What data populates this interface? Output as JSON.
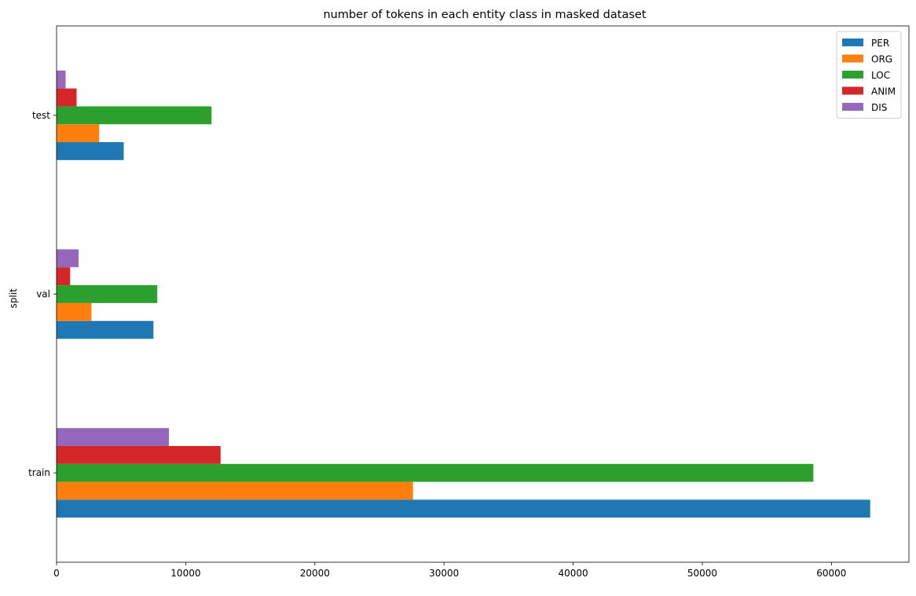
{
  "chart_data": {
    "type": "bar",
    "orientation": "horizontal",
    "title": "number of tokens in each entity class in masked dataset",
    "xlabel": "",
    "ylabel": "split",
    "categories": [
      "train",
      "val",
      "test"
    ],
    "xlim": [
      0,
      66000
    ],
    "xticks": [
      0,
      10000,
      20000,
      30000,
      40000,
      50000,
      60000
    ],
    "grid": false,
    "legend_position": "top-right",
    "series": [
      {
        "name": "PER",
        "color": "#1f77b4",
        "values": [
          63000,
          7500,
          5200
        ]
      },
      {
        "name": "ORG",
        "color": "#ff7f0e",
        "values": [
          27600,
          2700,
          3300
        ]
      },
      {
        "name": "LOC",
        "color": "#2ca02c",
        "values": [
          58600,
          7800,
          12000
        ]
      },
      {
        "name": "ANIM",
        "color": "#d62728",
        "values": [
          12700,
          1050,
          1550
        ]
      },
      {
        "name": "DIS",
        "color": "#9467bd",
        "values": [
          8700,
          1700,
          700
        ]
      }
    ]
  }
}
